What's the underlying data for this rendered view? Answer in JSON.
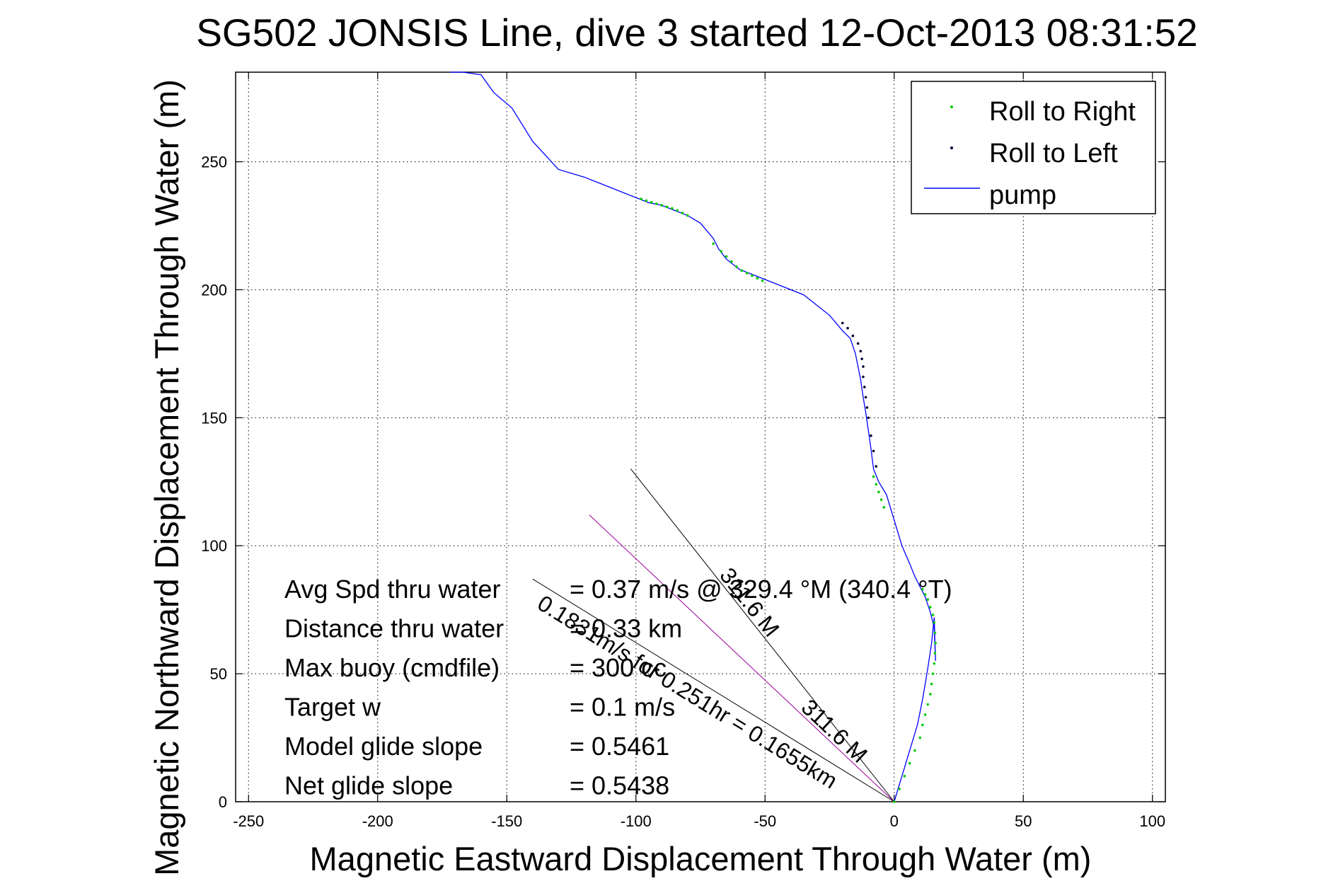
{
  "chart_data": {
    "type": "line",
    "title": "SG502 JONSIS Line, dive 3 started 12-Oct-2013 08:31:52",
    "xlabel": "Magnetic Eastward Displacement Through Water (m)",
    "ylabel": "Magnetic Northward Displacement Through Water (m)",
    "xlim": [
      -255,
      105
    ],
    "ylim": [
      0,
      285
    ],
    "xticks": [
      -250,
      -200,
      -150,
      -100,
      -50,
      0,
      50,
      100
    ],
    "yticks": [
      0,
      50,
      100,
      150,
      200,
      250
    ],
    "grid": true,
    "legend_position": "top-right",
    "legend": [
      "Roll to Right",
      "Roll to Left",
      "pump"
    ],
    "colors": {
      "roll_right": "#00cc00",
      "roll_left": "#000033",
      "pump": "#0000ff",
      "heading_lines": "#000000",
      "track_line": "#990099"
    },
    "series": [
      {
        "name": "pump",
        "x": [
          0,
          3,
          6,
          9,
          11,
          13,
          14.5,
          15.5,
          16,
          15.5,
          14,
          12,
          10,
          8,
          6,
          3,
          0,
          -3,
          -6,
          -8,
          -9,
          -10,
          -11,
          -12,
          -13,
          -14,
          -15,
          -16,
          -17,
          -20,
          -25,
          -35,
          -45,
          -55,
          -60,
          -65,
          -68,
          -70,
          -75,
          -80,
          -85,
          -90,
          -95,
          -100,
          -110,
          -120,
          -130,
          -140,
          -148,
          -155,
          -160,
          -167,
          -172
        ],
        "y": [
          0,
          10,
          20,
          30,
          40,
          52,
          62,
          72,
          55,
          68,
          74,
          80,
          84,
          88,
          93,
          100,
          110,
          120,
          125,
          130,
          138,
          145,
          152,
          158,
          165,
          170,
          175,
          178,
          181,
          184,
          190,
          198,
          202,
          206,
          208,
          212,
          216,
          220,
          226,
          229,
          231,
          233,
          234,
          236,
          240,
          244,
          247,
          258,
          271,
          277,
          284,
          285,
          285
        ]
      },
      {
        "name": "Roll to Right",
        "x": [
          0,
          2,
          4,
          6,
          8,
          10,
          11,
          12,
          13,
          14,
          14.5,
          15,
          15.5,
          15.8,
          16,
          15.8,
          15.5,
          15,
          14,
          13,
          12,
          11,
          -4,
          -5,
          -6,
          -7,
          -8,
          -70,
          -67,
          -65,
          -63,
          -61,
          -59,
          -57,
          -55,
          -53,
          -51,
          -98,
          -96,
          -94,
          -92,
          -90,
          -88,
          -86,
          -84,
          -82,
          -80
        ],
        "y": [
          0,
          5,
          10,
          15,
          20,
          25,
          30,
          34,
          38,
          42,
          46,
          50,
          54,
          58,
          62,
          66,
          70,
          73,
          76,
          79,
          81,
          83,
          115,
          118,
          121,
          124,
          127,
          218,
          215,
          213,
          211,
          209,
          207.5,
          206.5,
          205.5,
          204.5,
          203.5,
          235.5,
          234.8,
          234.2,
          233.6,
          233,
          232.4,
          231.8,
          231,
          230,
          229
        ]
      },
      {
        "name": "Roll to Left",
        "x": [
          -20,
          -18,
          -16,
          -14,
          -13,
          -12.5,
          -12,
          -12,
          -11.5,
          -11,
          -10.5,
          -10,
          -9,
          -8,
          -7
        ],
        "y": [
          187,
          185,
          182,
          179,
          176,
          173,
          170,
          166,
          162,
          158,
          154,
          150,
          143,
          137,
          131
        ]
      }
    ],
    "heading_lines": [
      {
        "from": [
          0,
          0
        ],
        "to": [
          -102,
          130
        ]
      },
      {
        "from": [
          0,
          0
        ],
        "to": [
          -140,
          87
        ]
      },
      {
        "from": [
          0,
          0
        ],
        "to": [
          -118,
          112
        ]
      }
    ],
    "annotations": {
      "rotated_1": "0.1831m/s for 0.251hr = 0.1655km",
      "rotated_2": "311.6 M",
      "rotated_3": "311.6 M"
    },
    "stats": [
      {
        "label": "Avg Spd thru water",
        "value": "=  0.37 m/s @ 329.4 °M (340.4 °T)"
      },
      {
        "label": "Distance thru water",
        "value": "=  0.33 km"
      },
      {
        "label": "Max buoy (cmdfile)",
        "value": "= 300 cc"
      },
      {
        "label": "Target w",
        "value": "= 0.1 m/s"
      },
      {
        "label": "Model glide slope",
        "value": "= 0.5461"
      },
      {
        "label": "Net glide slope",
        "value": "= 0.5438"
      }
    ]
  }
}
